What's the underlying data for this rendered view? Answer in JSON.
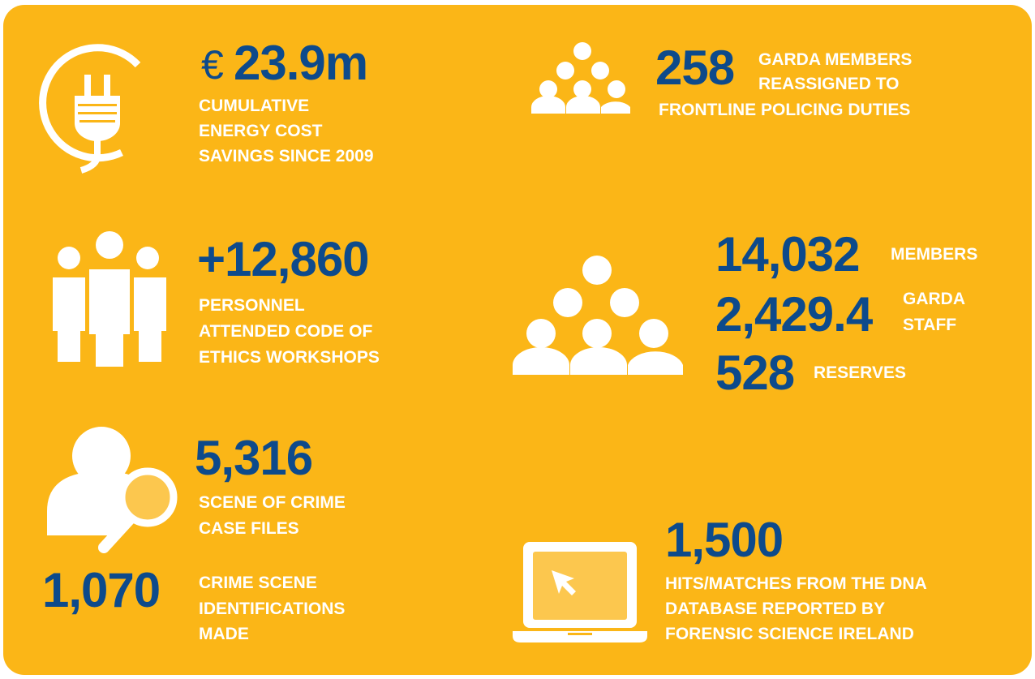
{
  "stats": [
    {
      "currency": "€",
      "figure": "23.9m",
      "label": [
        "CUMULATIVE",
        "ENERGY COST",
        "SAVINGS SINCE 2009"
      ]
    },
    {
      "figure": "258",
      "label": [
        "GARDA MEMBERS",
        "REASSIGNED TO",
        "FRONTLINE POLICING DUTIES"
      ]
    },
    {
      "figure": "+12,860",
      "label": [
        "PERSONNEL",
        "ATTENDED CODE OF",
        "ETHICS WORKSHOPS"
      ]
    },
    {
      "rows": [
        {
          "figure": "14,032",
          "label": [
            "MEMBERS"
          ]
        },
        {
          "figure": "2,429.4",
          "label": [
            "GARDA",
            "STAFF"
          ]
        },
        {
          "figure": "528",
          "label": [
            "RESERVES"
          ]
        }
      ]
    },
    {
      "figure": "5,316",
      "label": [
        "SCENE OF CRIME",
        "CASE FILES"
      ]
    },
    {
      "figure": "1,070",
      "label": [
        "CRIME SCENE",
        "IDENTIFICATIONS",
        "MADE"
      ]
    },
    {
      "figure": "1,500",
      "label": [
        "HITS/MATCHES FROM THE DNA",
        "DATABASE REPORTED BY",
        "FORENSIC SCIENCE IRELAND"
      ]
    }
  ]
}
